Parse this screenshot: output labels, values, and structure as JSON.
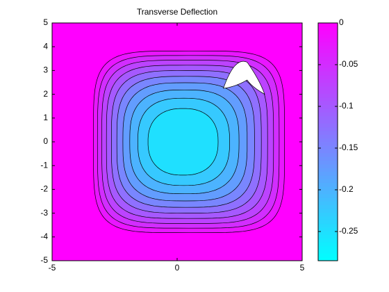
{
  "chart_data": {
    "type": "contour",
    "title": "Transverse Deflection",
    "xlim": [
      -5,
      5
    ],
    "ylim": [
      -5,
      5
    ],
    "xticks": [
      -5,
      0,
      5
    ],
    "yticks": [
      -5,
      -4,
      -3,
      -2,
      -1,
      0,
      1,
      2,
      3,
      4,
      5
    ],
    "levels": [
      -0.025,
      -0.05,
      -0.075,
      -0.1,
      -0.125,
      -0.15,
      -0.175,
      -0.2,
      -0.225,
      -0.25
    ],
    "colormap": "cool",
    "clim": [
      -0.285,
      0
    ],
    "cticks": [
      -0.25,
      -0.2,
      -0.15,
      -0.1,
      -0.05,
      0
    ]
  }
}
